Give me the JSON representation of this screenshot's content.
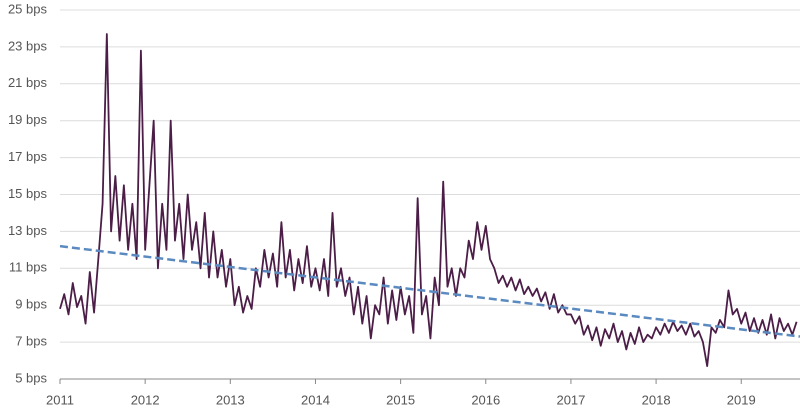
{
  "chart_data": {
    "type": "line",
    "xlim": [
      2011,
      2019.69
    ],
    "xticks": [
      2011,
      2012,
      2013,
      2014,
      2015,
      2016,
      2017,
      2018,
      2019
    ],
    "ylim": [
      5,
      25
    ],
    "yticks": [
      {
        "value": 5,
        "label": "5 bps"
      },
      {
        "value": 7,
        "label": "7 bps"
      },
      {
        "value": 9,
        "label": "9 bps"
      },
      {
        "value": 11,
        "label": "11 bps"
      },
      {
        "value": 13,
        "label": "13 bps"
      },
      {
        "value": 15,
        "label": "15 bps"
      },
      {
        "value": 17,
        "label": "17 bps"
      },
      {
        "value": 19,
        "label": "19 bps"
      },
      {
        "value": 21,
        "label": "21 bps"
      },
      {
        "value": 23,
        "label": "23 bps"
      },
      {
        "value": 25,
        "label": "25 bps"
      }
    ],
    "grid": true,
    "series": [
      {
        "color": "#4b1d47",
        "dashed": false,
        "x": [
          2011.0,
          2011.05,
          2011.1,
          2011.15,
          2011.2,
          2011.25,
          2011.3,
          2011.35,
          2011.4,
          2011.45,
          2011.5,
          2011.55,
          2011.6,
          2011.65,
          2011.7,
          2011.75,
          2011.8,
          2011.85,
          2011.9,
          2011.95,
          2012.0,
          2012.05,
          2012.1,
          2012.15,
          2012.2,
          2012.25,
          2012.3,
          2012.35,
          2012.4,
          2012.45,
          2012.5,
          2012.55,
          2012.6,
          2012.65,
          2012.7,
          2012.75,
          2012.8,
          2012.85,
          2012.9,
          2012.95,
          2013.0,
          2013.05,
          2013.1,
          2013.15,
          2013.2,
          2013.25,
          2013.3,
          2013.35,
          2013.4,
          2013.45,
          2013.5,
          2013.55,
          2013.6,
          2013.65,
          2013.7,
          2013.75,
          2013.8,
          2013.85,
          2013.9,
          2013.95,
          2014.0,
          2014.05,
          2014.1,
          2014.15,
          2014.2,
          2014.25,
          2014.3,
          2014.35,
          2014.4,
          2014.45,
          2014.5,
          2014.55,
          2014.6,
          2014.65,
          2014.7,
          2014.75,
          2014.8,
          2014.85,
          2014.9,
          2014.95,
          2015.0,
          2015.05,
          2015.1,
          2015.15,
          2015.2,
          2015.25,
          2015.3,
          2015.35,
          2015.4,
          2015.45,
          2015.5,
          2015.55,
          2015.6,
          2015.65,
          2015.7,
          2015.75,
          2015.8,
          2015.85,
          2015.9,
          2015.95,
          2016.0,
          2016.05,
          2016.1,
          2016.15,
          2016.2,
          2016.25,
          2016.3,
          2016.35,
          2016.4,
          2016.45,
          2016.5,
          2016.55,
          2016.6,
          2016.65,
          2016.7,
          2016.75,
          2016.8,
          2016.85,
          2016.9,
          2016.95,
          2017.0,
          2017.05,
          2017.1,
          2017.15,
          2017.2,
          2017.25,
          2017.3,
          2017.35,
          2017.4,
          2017.45,
          2017.5,
          2017.55,
          2017.6,
          2017.65,
          2017.7,
          2017.75,
          2017.8,
          2017.85,
          2017.9,
          2017.95,
          2018.0,
          2018.05,
          2018.1,
          2018.15,
          2018.2,
          2018.25,
          2018.3,
          2018.35,
          2018.4,
          2018.45,
          2018.5,
          2018.55,
          2018.6,
          2018.65,
          2018.7,
          2018.75,
          2018.8,
          2018.85,
          2018.9,
          2018.95,
          2019.0,
          2019.05,
          2019.1,
          2019.15,
          2019.2,
          2019.25,
          2019.3,
          2019.35,
          2019.4,
          2019.45,
          2019.5,
          2019.55,
          2019.6,
          2019.65
        ],
        "values": [
          8.8,
          9.6,
          8.5,
          10.2,
          8.9,
          9.5,
          8.0,
          10.8,
          8.6,
          11.5,
          14.5,
          23.7,
          13.0,
          16.0,
          12.5,
          15.5,
          12.0,
          14.5,
          11.5,
          22.8,
          12.0,
          15.5,
          19.0,
          11.0,
          14.5,
          12.0,
          19.0,
          12.5,
          14.5,
          11.5,
          15.0,
          12.0,
          13.5,
          11.0,
          14.0,
          10.5,
          13.0,
          10.5,
          12.0,
          10.0,
          11.5,
          9.0,
          10.0,
          8.6,
          9.5,
          8.8,
          11.0,
          10.0,
          12.0,
          10.5,
          11.8,
          10.0,
          13.5,
          10.5,
          12.0,
          9.8,
          11.5,
          10.2,
          12.2,
          10.0,
          11.0,
          9.8,
          11.5,
          9.5,
          14.0,
          10.0,
          11.0,
          9.5,
          10.5,
          8.5,
          10.0,
          8.0,
          9.5,
          7.2,
          9.0,
          8.5,
          10.5,
          8.0,
          9.8,
          8.2,
          10.0,
          8.5,
          9.5,
          7.5,
          14.8,
          8.5,
          9.5,
          7.2,
          10.5,
          9.0,
          15.7,
          10.0,
          11.0,
          9.5,
          11.0,
          10.5,
          12.5,
          11.5,
          13.5,
          12.0,
          13.3,
          11.5,
          11.0,
          10.2,
          10.6,
          10.0,
          10.5,
          9.8,
          10.4,
          9.6,
          10.0,
          9.5,
          9.9,
          9.2,
          9.7,
          8.8,
          9.6,
          8.6,
          9.0,
          8.5,
          8.5,
          8.0,
          8.4,
          7.4,
          7.9,
          7.1,
          7.8,
          6.8,
          7.7,
          7.2,
          8.0,
          7.0,
          7.6,
          6.6,
          7.5,
          6.9,
          7.8,
          7.0,
          7.4,
          7.2,
          7.8,
          7.4,
          8.0,
          7.5,
          8.1,
          7.6,
          7.9,
          7.4,
          8.0,
          7.3,
          7.6,
          7.0,
          5.7,
          7.8,
          7.5,
          8.2,
          7.8,
          9.8,
          8.5,
          8.8,
          8.0,
          8.6,
          7.6,
          8.3,
          7.5,
          8.2,
          7.4,
          8.5,
          7.2,
          8.3,
          7.6,
          8.0,
          7.4,
          8.1
        ]
      },
      {
        "color": "#5a8ac0",
        "dashed": true,
        "x": [
          2011,
          2019.69
        ],
        "values": [
          12.2,
          7.3
        ]
      }
    ]
  }
}
